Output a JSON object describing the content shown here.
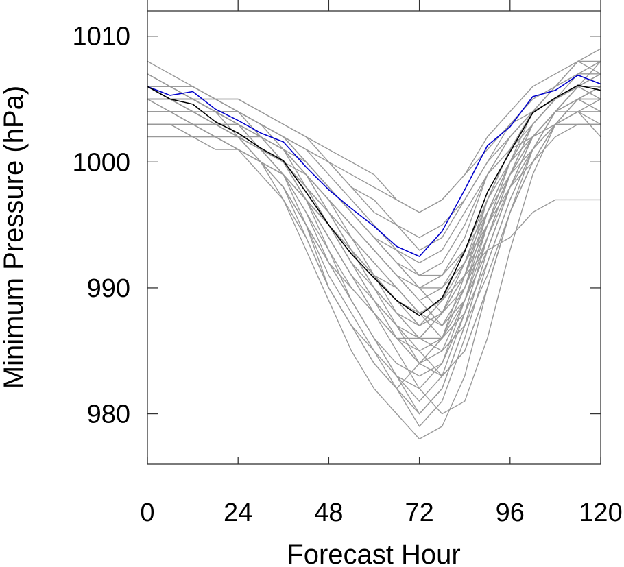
{
  "chart_data": {
    "type": "line",
    "title": "",
    "xlabel": "Forecast Hour",
    "ylabel": "Minimum Pressure (hPa)",
    "xlim": [
      0,
      120
    ],
    "ylim": [
      976,
      1012
    ],
    "x_ticks": [
      0,
      24,
      48,
      72,
      96,
      120
    ],
    "y_ticks": [
      980,
      990,
      1000,
      1010
    ],
    "grid": false,
    "legend": "none",
    "x": [
      0,
      6,
      12,
      18,
      24,
      30,
      36,
      42,
      48,
      54,
      60,
      66,
      72,
      78,
      84,
      90,
      96,
      102,
      108,
      114,
      120
    ],
    "ensemble_color": "#999999",
    "ensemble_members": [
      [
        1006,
        1005,
        1005,
        1004,
        1003,
        1002,
        1001,
        999,
        996,
        993,
        990,
        987,
        984,
        986,
        991,
        997,
        1001,
        1004,
        1005,
        1006,
        1006
      ],
      [
        1005,
        1005,
        1004,
        1003,
        1002,
        1001,
        1000,
        997,
        994,
        991,
        988,
        985,
        982,
        984,
        989,
        995,
        1000,
        1003,
        1005,
        1006,
        1006
      ],
      [
        1007,
        1006,
        1006,
        1005,
        1004,
        1003,
        1002,
        1000,
        998,
        996,
        994,
        992,
        990,
        991,
        994,
        999,
        1002,
        1004,
        1006,
        1007,
        1007
      ],
      [
        1004,
        1004,
        1003,
        1002,
        1001,
        1000,
        998,
        995,
        992,
        989,
        986,
        983,
        981,
        983,
        988,
        994,
        999,
        1002,
        1004,
        1005,
        1005
      ],
      [
        1006,
        1006,
        1005,
        1004,
        1003,
        1002,
        1001,
        999,
        997,
        994,
        991,
        988,
        986,
        988,
        992,
        997,
        1001,
        1003,
        1005,
        1006,
        1006
      ],
      [
        1005,
        1005,
        1005,
        1004,
        1004,
        1003,
        1002,
        1001,
        999,
        997,
        995,
        993,
        991,
        992,
        995,
        999,
        1002,
        1004,
        1005,
        1006,
        1005
      ],
      [
        1008,
        1007,
        1006,
        1005,
        1004,
        1002,
        1000,
        997,
        993,
        989,
        986,
        983,
        980,
        982,
        987,
        993,
        998,
        1002,
        1004,
        1006,
        1007
      ],
      [
        1003,
        1003,
        1002,
        1002,
        1001,
        1000,
        999,
        997,
        995,
        993,
        991,
        989,
        987,
        989,
        993,
        997,
        1000,
        1002,
        1003,
        1004,
        1004
      ],
      [
        1006,
        1005,
        1004,
        1003,
        1002,
        1000,
        998,
        995,
        991,
        988,
        985,
        982,
        979,
        981,
        986,
        992,
        997,
        1001,
        1004,
        1006,
        1007
      ],
      [
        1007,
        1006,
        1005,
        1004,
        1003,
        1002,
        1001,
        999,
        997,
        995,
        993,
        991,
        989,
        990,
        993,
        997,
        1001,
        1004,
        1006,
        1008,
        1009
      ],
      [
        1005,
        1004,
        1004,
        1003,
        1002,
        1001,
        999,
        996,
        993,
        990,
        988,
        986,
        984,
        985,
        989,
        994,
        998,
        1001,
        1003,
        1004,
        1003
      ],
      [
        1006,
        1006,
        1006,
        1005,
        1005,
        1004,
        1003,
        1002,
        1000,
        998,
        996,
        995,
        993,
        994,
        997,
        1000,
        1003,
        1005,
        1006,
        1007,
        1008
      ],
      [
        1002,
        1002,
        1002,
        1001,
        1001,
        1000,
        999,
        997,
        995,
        993,
        991,
        990,
        988,
        989,
        991,
        993,
        994,
        996,
        997,
        997,
        997
      ],
      [
        1006,
        1005,
        1005,
        1004,
        1003,
        1001,
        999,
        996,
        992,
        989,
        986,
        984,
        983,
        984,
        988,
        994,
        999,
        1003,
        1005,
        1006,
        1006
      ],
      [
        1004,
        1004,
        1003,
        1003,
        1002,
        1001,
        1000,
        998,
        996,
        994,
        992,
        990,
        988,
        986,
        989,
        993,
        998,
        1002,
        1004,
        1005,
        1004
      ],
      [
        1007,
        1006,
        1005,
        1005,
        1004,
        1003,
        1001,
        998,
        995,
        992,
        989,
        987,
        985,
        983,
        985,
        990,
        996,
        1000,
        1003,
        1005,
        1006
      ],
      [
        1005,
        1005,
        1004,
        1003,
        1002,
        1001,
        1000,
        998,
        996,
        994,
        992,
        990,
        988,
        987,
        990,
        995,
        999,
        1002,
        1004,
        1006,
        1007
      ],
      [
        1006,
        1005,
        1005,
        1004,
        1003,
        1001,
        999,
        995,
        990,
        987,
        985,
        983,
        982,
        980,
        981,
        986,
        993,
        999,
        1003,
        1005,
        1006
      ],
      [
        1003,
        1003,
        1003,
        1002,
        1002,
        1001,
        1000,
        999,
        997,
        995,
        993,
        991,
        990,
        990,
        992,
        995,
        998,
        1000,
        1002,
        1003,
        1003
      ],
      [
        1006,
        1006,
        1005,
        1005,
        1004,
        1003,
        1002,
        1000,
        998,
        996,
        994,
        992,
        990,
        988,
        990,
        994,
        999,
        1003,
        1005,
        1007,
        1008
      ],
      [
        1005,
        1004,
        1003,
        1002,
        1001,
        999,
        997,
        994,
        990,
        987,
        984,
        982,
        984,
        986,
        990,
        996,
        1000,
        1002,
        1004,
        1005,
        1005
      ],
      [
        1004,
        1004,
        1004,
        1003,
        1003,
        1002,
        1001,
        1000,
        998,
        996,
        994,
        992,
        991,
        991,
        993,
        996,
        999,
        1001,
        1003,
        1004,
        1005
      ],
      [
        1007,
        1006,
        1005,
        1004,
        1003,
        1002,
        1000,
        997,
        994,
        991,
        988,
        986,
        985,
        986,
        990,
        995,
        1000,
        1004,
        1006,
        1008,
        1008
      ],
      [
        1006,
        1006,
        1005,
        1004,
        1002,
        1000,
        997,
        993,
        989,
        985,
        982,
        980,
        978,
        979,
        983,
        990,
        996,
        1000,
        1003,
        1005,
        1006
      ],
      [
        1005,
        1005,
        1005,
        1004,
        1004,
        1003,
        1002,
        1001,
        1000,
        998,
        997,
        995,
        994,
        995,
        997,
        1000,
        1002,
        1004,
        1005,
        1006,
        1006
      ],
      [
        1004,
        1004,
        1003,
        1002,
        1001,
        1000,
        998,
        995,
        992,
        990,
        988,
        986,
        986,
        988,
        991,
        995,
        999,
        1002,
        1004,
        1004,
        1002
      ],
      [
        1006,
        1006,
        1006,
        1005,
        1005,
        1004,
        1003,
        1002,
        1001,
        1000,
        999,
        997,
        996,
        997,
        999,
        1002,
        1004,
        1006,
        1007,
        1008,
        1007
      ],
      [
        1005,
        1005,
        1004,
        1003,
        1002,
        1001,
        999,
        997,
        994,
        991,
        989,
        987,
        986,
        986,
        988,
        992,
        997,
        1001,
        1004,
        1006,
        1008
      ],
      [
        1003,
        1003,
        1002,
        1002,
        1001,
        1000,
        999,
        997,
        995,
        993,
        991,
        989,
        987,
        988,
        991,
        995,
        999,
        1002,
        1004,
        1006,
        1006
      ],
      [
        1006,
        1005,
        1004,
        1003,
        1002,
        1001,
        1000,
        998,
        996,
        993,
        990,
        988,
        986,
        985,
        987,
        991,
        996,
        1000,
        1003,
        1005,
        1004
      ],
      [
        1007,
        1006,
        1005,
        1004,
        1003,
        1002,
        1000,
        998,
        995,
        992,
        990,
        988,
        987,
        988,
        991,
        996,
        1000,
        1003,
        1005,
        1006,
        1007
      ],
      [
        1004,
        1004,
        1004,
        1003,
        1002,
        1002,
        1001,
        999,
        997,
        995,
        993,
        991,
        989,
        987,
        989,
        993,
        998,
        1001,
        1003,
        1004,
        1004
      ],
      [
        1006,
        1006,
        1005,
        1004,
        1003,
        1002,
        1001,
        999,
        996,
        993,
        991,
        989,
        988,
        989,
        992,
        996,
        1000,
        1003,
        1005,
        1006,
        1005
      ],
      [
        1005,
        1005,
        1004,
        1003,
        1002,
        1000,
        998,
        994,
        990,
        987,
        984,
        982,
        980,
        982,
        987,
        993,
        998,
        1002,
        1004,
        1005,
        1006
      ],
      [
        1006,
        1005,
        1005,
        1004,
        1003,
        1002,
        1000,
        998,
        995,
        992,
        989,
        986,
        984,
        983,
        985,
        990,
        996,
        1001,
        1004,
        1006,
        1007
      ],
      [
        1005,
        1005,
        1005,
        1004,
        1004,
        1003,
        1002,
        1000,
        998,
        996,
        994,
        993,
        992,
        993,
        996,
        999,
        1001,
        1002,
        1003,
        1003,
        1003
      ],
      [
        1004,
        1004,
        1004,
        1004,
        1004,
        1003,
        1002,
        1001,
        1000,
        999,
        998,
        997,
        996,
        997,
        999,
        1001,
        1003,
        1004,
        1005,
        1006,
        1006
      ]
    ],
    "series": [
      {
        "color": "#0000cc",
        "values": [
          1006.0,
          1005.3,
          1005.6,
          1004.2,
          1003.3,
          1002.3,
          1001.6,
          999.6,
          997.8,
          996.3,
          994.9,
          993.3,
          992.5,
          994.5,
          997.8,
          1001.3,
          1002.8,
          1005.2,
          1005.7,
          1006.9,
          1006.2
        ]
      },
      {
        "color": "#000000",
        "values": [
          1006.0,
          1005.0,
          1004.6,
          1003.2,
          1002.3,
          1001.1,
          1000.1,
          997.6,
          995.0,
          992.7,
          990.8,
          989.0,
          987.8,
          989.2,
          992.9,
          997.6,
          1000.8,
          1003.9,
          1005.1,
          1006.1,
          1005.7
        ]
      }
    ]
  }
}
